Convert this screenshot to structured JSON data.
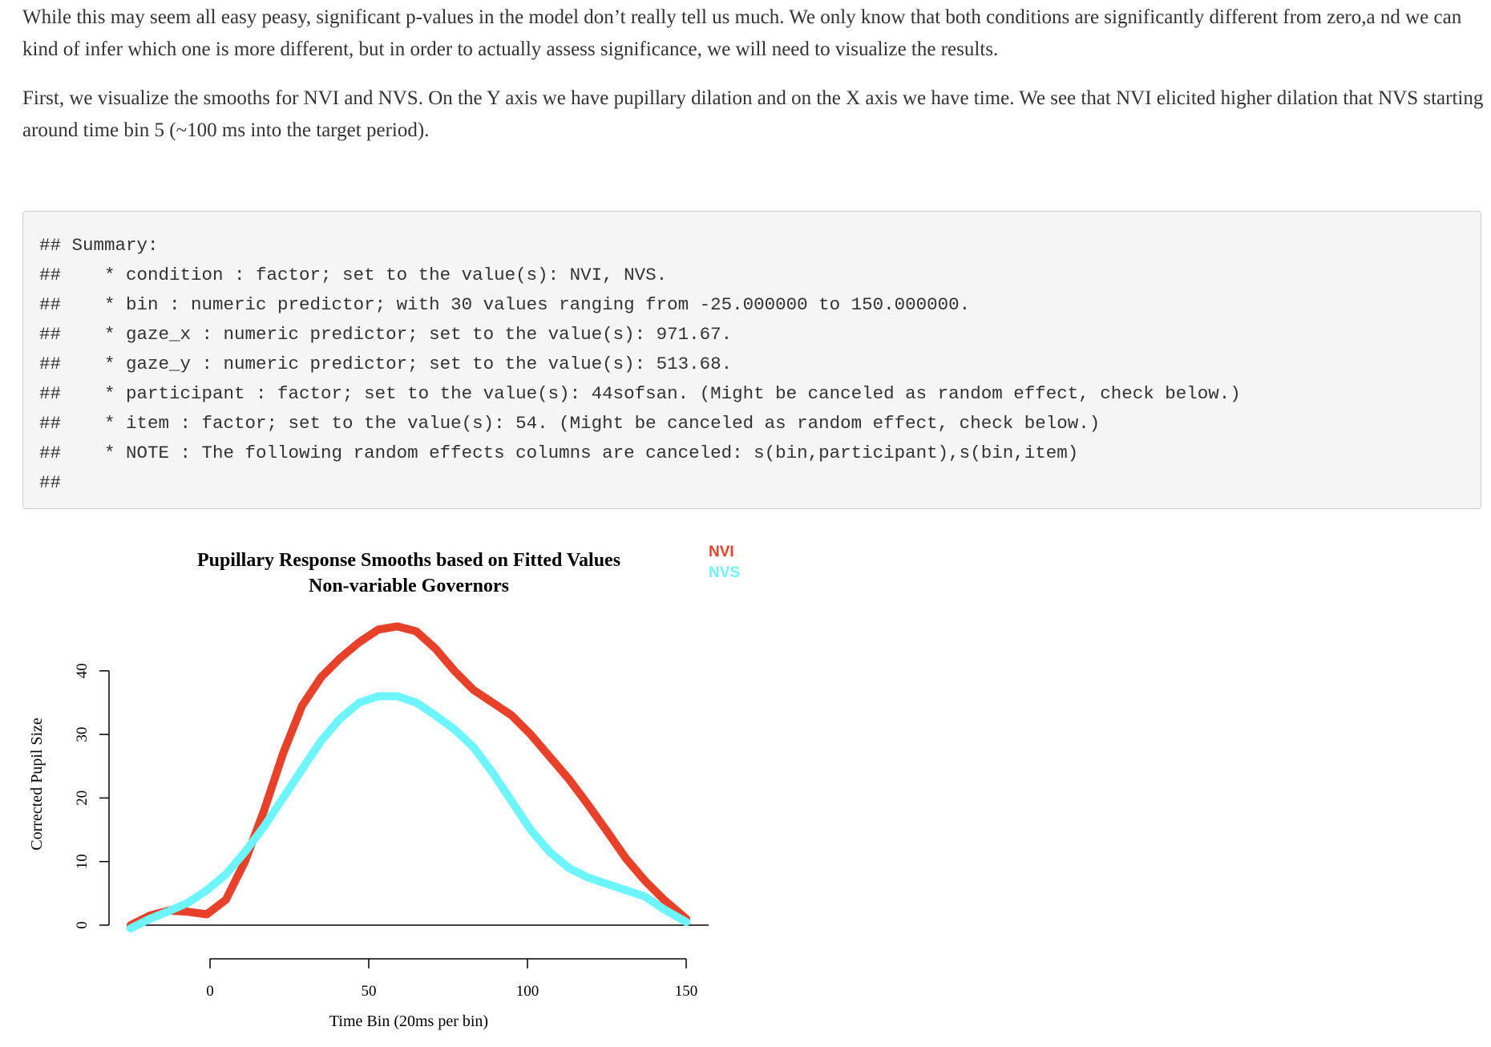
{
  "paragraphs": [
    "While this may seem all easy peasy, significant p-values in the model don’t really tell us much. We only know that both conditions are significantly different from zero,a nd we can kind of infer which one is more different, but in order to actually assess significance, we will need to visualize the results.",
    "First, we visualize the smooths for NVI and NVS. On the Y axis we have pupillary dilation and on the X axis we have time. We see that NVI elicited higher dilation that NVS starting around time bin 5 (~100 ms into the target period)."
  ],
  "code_output": [
    "## Summary:",
    "##    * condition : factor; set to the value(s): NVI, NVS.",
    "##    * bin : numeric predictor; with 30 values ranging from -25.000000 to 150.000000.",
    "##    * gaze_x : numeric predictor; set to the value(s): 971.67.",
    "##    * gaze_y : numeric predictor; set to the value(s): 513.68.",
    "##    * participant : factor; set to the value(s): 44sofsan. (Might be canceled as random effect, check below.)",
    "##    * item : factor; set to the value(s): 54. (Might be canceled as random effect, check below.)",
    "##    * NOTE : The following random effects columns are canceled: s(bin,participant),s(bin,item)",
    "## "
  ],
  "chart_data": {
    "type": "line",
    "title": "Pupillary Response Smooths based on Fitted Values",
    "subtitle": "Non-variable Governors",
    "xlabel": "Time Bin (20ms per bin)",
    "ylabel": "Corrected Pupil Size",
    "x_ticks": [
      0,
      50,
      100,
      150
    ],
    "y_ticks": [
      0,
      10,
      20,
      30,
      40
    ],
    "xlim": [
      -25,
      150
    ],
    "ylim": [
      -1,
      47
    ],
    "grid": false,
    "legend_position": "top-right",
    "series": [
      {
        "name": "NVI",
        "color": "#e8412a",
        "x": [
          -25,
          -19,
          -13,
          -7,
          -1,
          5,
          11,
          17,
          23,
          29,
          35,
          41,
          47,
          53,
          59,
          65,
          71,
          77,
          83,
          89,
          95,
          101,
          107,
          113,
          119,
          125,
          131,
          137,
          143,
          150
        ],
        "y": [
          0,
          1.5,
          2.3,
          2.1,
          1.7,
          4,
          10,
          18,
          27,
          34.5,
          39,
          42,
          44.5,
          46.5,
          47,
          46.2,
          43.5,
          40,
          37,
          35,
          33,
          30,
          26.5,
          23,
          19,
          14.8,
          10.5,
          7,
          4,
          1
        ]
      },
      {
        "name": "NVS",
        "color": "#6ef4fb",
        "x": [
          -25,
          -19,
          -13,
          -7,
          -1,
          5,
          11,
          17,
          23,
          29,
          35,
          41,
          47,
          53,
          59,
          65,
          71,
          77,
          83,
          89,
          95,
          101,
          107,
          113,
          119,
          125,
          131,
          137,
          143,
          150
        ],
        "y": [
          -0.5,
          1,
          2.2,
          3.5,
          5.5,
          8,
          11.5,
          15.5,
          20,
          24.5,
          29,
          32.5,
          35,
          36,
          36,
          35,
          33,
          30.8,
          28,
          24,
          19.5,
          15,
          11.5,
          9,
          7.5,
          6.5,
          5.5,
          4.5,
          2.5,
          0.5
        ]
      }
    ]
  }
}
